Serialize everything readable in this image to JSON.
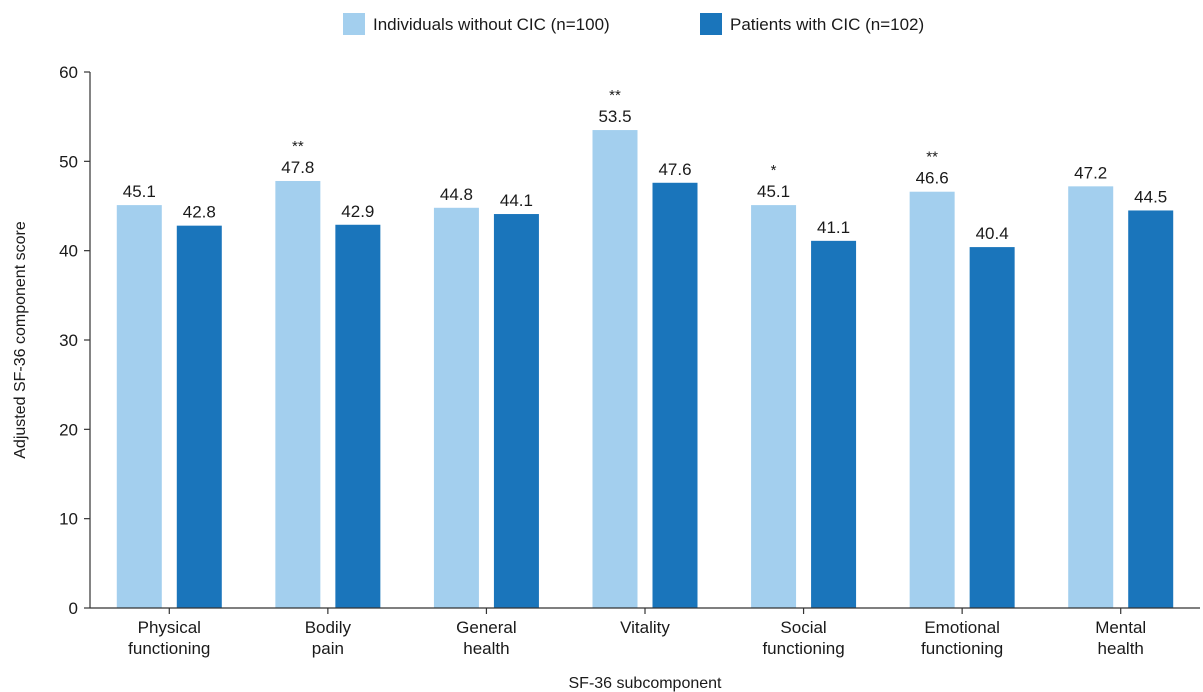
{
  "chart_data": {
    "type": "bar",
    "title": "",
    "xlabel": "SF-36 subcomponent",
    "ylabel": "Adjusted SF-36 component score",
    "ylim": [
      0,
      60
    ],
    "yticks": [
      0,
      10,
      20,
      30,
      40,
      50,
      60
    ],
    "grid": false,
    "legend_position": "top",
    "categories": [
      [
        "Physical",
        "functioning"
      ],
      [
        "Bodily",
        "pain"
      ],
      [
        "General",
        "health"
      ],
      [
        "Vitality"
      ],
      [
        "Social",
        "functioning"
      ],
      [
        "Emotional",
        "functioning"
      ],
      [
        "Mental",
        "health"
      ]
    ],
    "series": [
      {
        "name": "Individuals without CIC (n=100)",
        "color": "#a3cfee",
        "values": [
          45.1,
          47.8,
          44.8,
          53.5,
          45.1,
          46.6,
          47.2
        ],
        "value_labels": [
          "45.1",
          "47.8",
          "44.8",
          "53.5",
          "45.1",
          "46.6",
          "47.2"
        ]
      },
      {
        "name": "Patients with CIC (n=102)",
        "color": "#1a75bb",
        "values": [
          42.8,
          42.9,
          44.1,
          47.6,
          41.1,
          40.4,
          44.5
        ],
        "value_labels": [
          "42.8",
          "42.9",
          "44.1",
          "47.6",
          "41.1",
          "40.4",
          "44.5"
        ]
      }
    ],
    "significance": [
      "",
      "**",
      "",
      "**",
      "*",
      "**",
      ""
    ]
  }
}
